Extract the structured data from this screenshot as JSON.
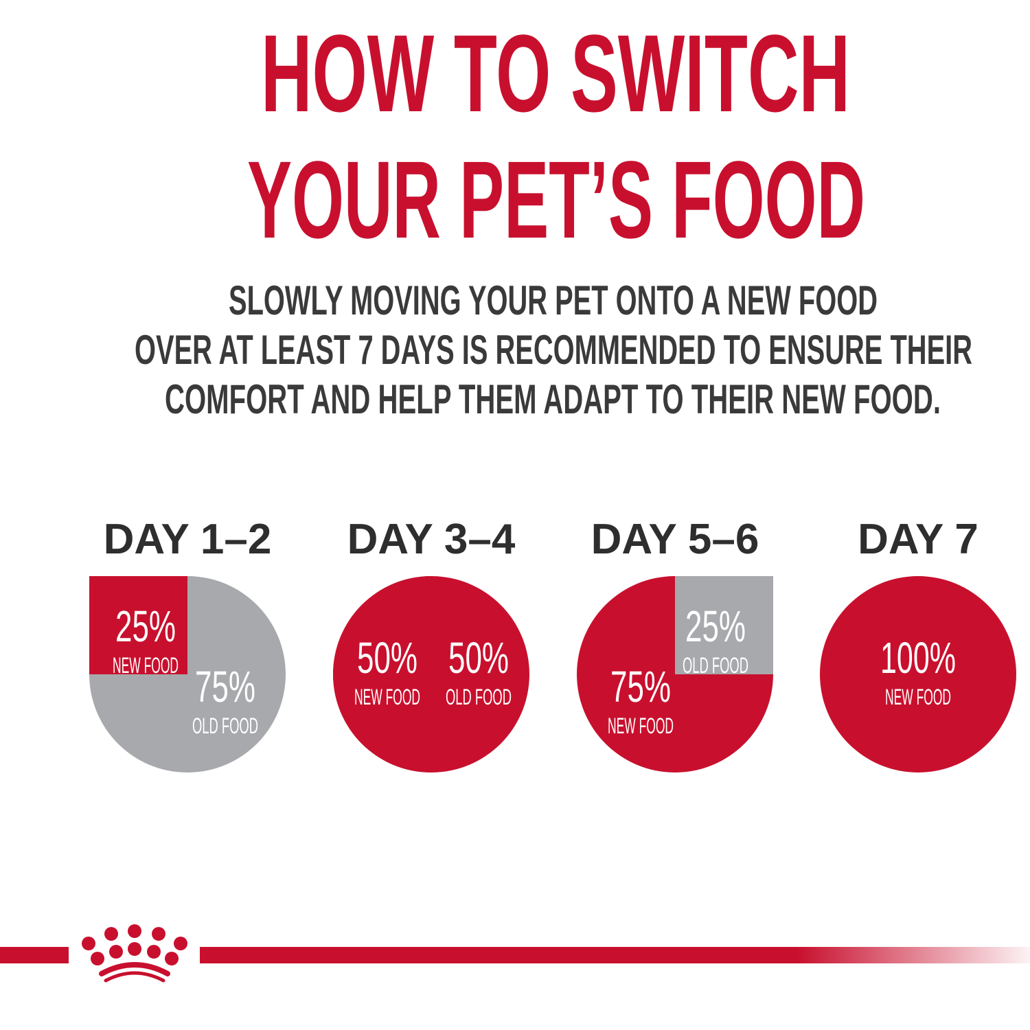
{
  "title": {
    "line1": "HOW TO SWITCH",
    "line2": "YOUR PET’S FOOD"
  },
  "subtitle": {
    "line1": "SLOWLY MOVING YOUR PET ONTO A NEW FOOD",
    "line2": "OVER AT LEAST 7 DAYS IS RECOMMENDED TO ENSURE THEIR",
    "line3": "COMFORT AND HELP THEM ADAPT TO THEIR NEW FOOD."
  },
  "colors": {
    "new_food": "#c8102e",
    "old_food": "#a7a9ac",
    "title": "#c8102e",
    "text": "#3a3a3a"
  },
  "logo": "royal-canin-crown",
  "chart_data": {
    "type": "pie",
    "charts": [
      {
        "title": "DAY 1–2",
        "slices": [
          {
            "label": "NEW FOOD",
            "value": 25,
            "text": "25%"
          },
          {
            "label": "OLD FOOD",
            "value": 75,
            "text": "75%"
          }
        ]
      },
      {
        "title": "DAY 3–4",
        "slices": [
          {
            "label": "NEW FOOD",
            "value": 50,
            "text": "50%"
          },
          {
            "label": "OLD FOOD",
            "value": 50,
            "text": "50%"
          }
        ]
      },
      {
        "title": "DAY 5–6",
        "slices": [
          {
            "label": "NEW FOOD",
            "value": 75,
            "text": "75%"
          },
          {
            "label": "OLD FOOD",
            "value": 25,
            "text": "25%"
          }
        ]
      },
      {
        "title": "DAY 7",
        "slices": [
          {
            "label": "NEW FOOD",
            "value": 100,
            "text": "100%"
          }
        ]
      }
    ]
  }
}
